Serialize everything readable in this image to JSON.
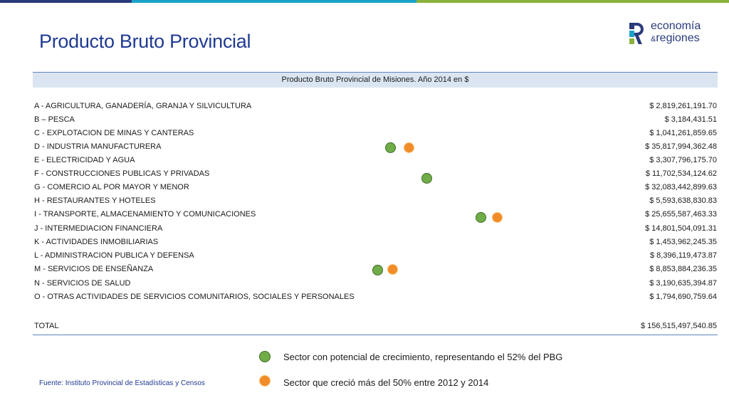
{
  "header": {
    "title": "Producto Bruto Provincial",
    "logo": {
      "line1": "economía",
      "amp": "&",
      "line2": "regiones"
    }
  },
  "table": {
    "caption": "Producto Bruto Provincial de Misiones. Año 2014 en $",
    "rows": [
      {
        "name": "A - AGRICULTURA, GANADERÍA, GRANJA Y SILVICULTURA",
        "value": "$ 2,819,261,191.70"
      },
      {
        "name": "B – PESCA",
        "value": "$ 3,184,431.51"
      },
      {
        "name": "C - EXPLOTACION DE MINAS Y CANTERAS",
        "value": "$ 1,041,261,859.65"
      },
      {
        "name": "D - INDUSTRIA MANUFACTURERA",
        "value": "$ 35,817,994,362.48"
      },
      {
        "name": "E - ELECTRICIDAD Y AGUA",
        "value": "$ 3,307,796,175.70"
      },
      {
        "name": "F - CONSTRUCCIONES PUBLICAS Y PRIVADAS",
        "value": "$ 11,702,534,124.62"
      },
      {
        "name": "G - COMERCIO AL POR MAYOR Y MENOR",
        "value": "$ 32,083,442,899.63"
      },
      {
        "name": "H - RESTAURANTES Y HOTELES",
        "value": "$ 5,593,638,830.83"
      },
      {
        "name": "I - TRANSPORTE, ALMACENAMIENTO Y COMUNICACIONES",
        "value": "$ 25,655,587,463.33"
      },
      {
        "name": "J - INTERMEDIACION FINANCIERA",
        "value": "$ 14,801,504,091.31"
      },
      {
        "name": "K - ACTIVIDADES INMOBILIARIAS",
        "value": "$ 1,453,962,245.35"
      },
      {
        "name": "L - ADMINISTRACION PUBLICA Y DEFENSA",
        "value": "$ 8,396,119,473.87"
      },
      {
        "name": "M - SERVICIOS DE ENSEÑANZA",
        "value": "$ 8,853,884,236.35"
      },
      {
        "name": "N - SERVICIOS DE SALUD",
        "value": "$ 3,190,635,394.87"
      },
      {
        "name": "O - OTRAS ACTIVIDADES DE SERVICIOS COMUNITARIOS, SOCIALES Y PERSONALES",
        "value": "$ 1,794,690,759.64"
      }
    ],
    "total": {
      "name": "TOTAL",
      "value": "$ 156,515,497,540.85"
    }
  },
  "legend": {
    "green": "Sector con potencial de crecimiento, representando el 52% del PBG",
    "orange": "Sector que creció más del 50% entre 2012 y 2014"
  },
  "source": "Fuente: Instituto Provincial de Estadísticas y Censos",
  "colors": {
    "green": "#70ad47",
    "orange": "#f28c28",
    "title": "#1f3a93",
    "header_fill": "#dbe5f1"
  }
}
